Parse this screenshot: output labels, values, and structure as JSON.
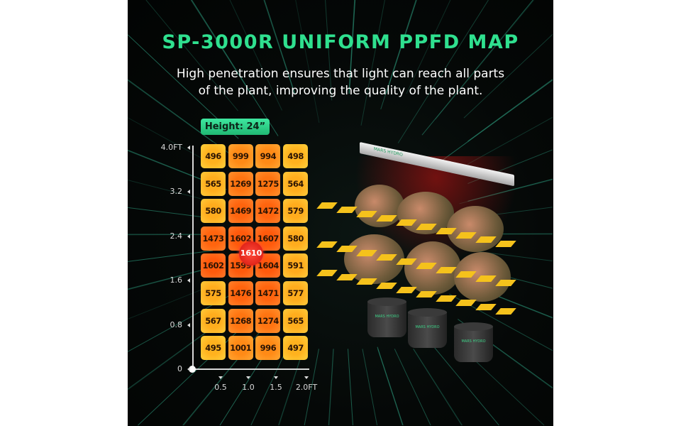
{
  "title": "SP-3000R UNIFORM PPFD MAP",
  "subtitle_lines": [
    "High penetration ensures that light can reach all parts",
    "of the plant, improving the quality of the plant."
  ],
  "brand_logo": "MARS HYDRO",
  "chart_data": {
    "type": "heatmap",
    "badge": "Height: 24”",
    "y_ticks": [
      "4.0FT",
      "3.2",
      "2.4",
      "1.6",
      "0.8",
      "0"
    ],
    "x_ticks": [
      "0.5",
      "1.0",
      "1.5",
      "2.0FT"
    ],
    "rows_top_to_bottom": [
      [
        496,
        999,
        994,
        498
      ],
      [
        565,
        1269,
        1275,
        564
      ],
      [
        580,
        1469,
        1472,
        579
      ],
      [
        1473,
        1602,
        1607,
        580
      ],
      [
        1602,
        1599,
        1604,
        591
      ],
      [
        575,
        1476,
        1471,
        577
      ],
      [
        567,
        1268,
        1274,
        565
      ],
      [
        495,
        1001,
        996,
        497
      ]
    ],
    "peak_value": 1610,
    "colors": {
      "low": "#ffb21e",
      "high": "#ff5a0c",
      "peak": "#e01a10",
      "accent": "#2fe08f"
    }
  }
}
